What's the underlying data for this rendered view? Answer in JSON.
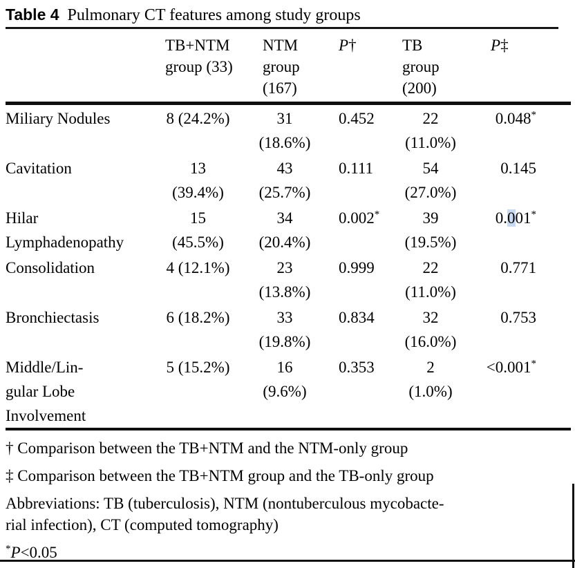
{
  "title": {
    "label": "Table 4",
    "text": "Pulmonary CT features among study groups"
  },
  "table": {
    "header": {
      "feature": "",
      "g1": [
        "TB+NTM",
        "group (33)"
      ],
      "g2": [
        "NTM",
        "group",
        "(167)"
      ],
      "p1": {
        "p": "P",
        "mark": "†"
      },
      "g3": [
        "TB",
        "group",
        "(200)"
      ],
      "p2": {
        "p": "P",
        "mark": "‡"
      }
    },
    "rows": [
      {
        "feature": [
          "Miliary Nodules"
        ],
        "g1": [
          "8 (24.2%)"
        ],
        "g2": [
          "31",
          "(18.6%)"
        ],
        "p1": {
          "pre": "0.452",
          "hl": "",
          "post": "",
          "star": ""
        },
        "g3": [
          "22",
          "(11.0%)"
        ],
        "p2": {
          "pre": "0.048",
          "hl": "",
          "post": "",
          "star": "*"
        }
      },
      {
        "feature": [
          "Cavitation"
        ],
        "g1": [
          "13",
          "(39.4%)"
        ],
        "g2": [
          "43",
          "(25.7%)"
        ],
        "p1": {
          "pre": "0.111",
          "hl": "",
          "post": "",
          "star": ""
        },
        "g3": [
          "54",
          "(27.0%)"
        ],
        "p2": {
          "pre": "0.145",
          "hl": "",
          "post": "",
          "star": ""
        }
      },
      {
        "feature": [
          "Hilar",
          "Lymphadenopathy"
        ],
        "g1": [
          "15",
          "(45.5%)"
        ],
        "g2": [
          "34",
          "(20.4%)"
        ],
        "p1": {
          "pre": "0.002",
          "hl": "",
          "post": "",
          "star": "*"
        },
        "g3": [
          "39",
          "(19.5%)"
        ],
        "p2": {
          "pre": "0.",
          "hl": "0",
          "post": "01",
          "star": "*"
        }
      },
      {
        "feature": [
          "Consolidation"
        ],
        "g1": [
          "4 (12.1%)"
        ],
        "g2": [
          "23",
          "(13.8%)"
        ],
        "p1": {
          "pre": "0.999",
          "hl": "",
          "post": "",
          "star": ""
        },
        "g3": [
          "22",
          "(11.0%)"
        ],
        "p2": {
          "pre": "0.771",
          "hl": "",
          "post": "",
          "star": ""
        }
      },
      {
        "feature": [
          "Bronchiectasis"
        ],
        "g1": [
          "6 (18.2%)"
        ],
        "g2": [
          "33",
          "(19.8%)"
        ],
        "p1": {
          "pre": "0.834",
          "hl": "",
          "post": "",
          "star": ""
        },
        "g3": [
          "32",
          "(16.0%)"
        ],
        "p2": {
          "pre": "0.753",
          "hl": "",
          "post": "",
          "star": ""
        }
      },
      {
        "feature": [
          "Middle/Lin-",
          "gular Lobe",
          "Involvement"
        ],
        "g1": [
          "5 (15.2%)"
        ],
        "g2": [
          "16",
          "(9.6%)"
        ],
        "p1": {
          "pre": "0.353",
          "hl": "",
          "post": "",
          "star": ""
        },
        "g3": [
          "2",
          "(1.0%)"
        ],
        "p2": {
          "pre": "<0.001",
          "hl": "",
          "post": "",
          "star": "*"
        }
      }
    ]
  },
  "footnotes": {
    "dagger": {
      "mark": "†",
      "text": "Comparison between the TB+NTM and the NTM-only group"
    },
    "ddagger": {
      "mark": "‡",
      "text": "Comparison between the TB+NTM group and the TB-only group"
    },
    "abbrev_lines": [
      "Abbreviations: TB (tuberculosis), NTM (nontuberculous mycobacte-",
      "rial infection), CT (computed tomography)"
    ],
    "pvalue": {
      "star": "*",
      "p": "P",
      "text": "<0.05"
    }
  },
  "colors": {
    "highlight": "#c9daf0",
    "rule": "#111111"
  }
}
